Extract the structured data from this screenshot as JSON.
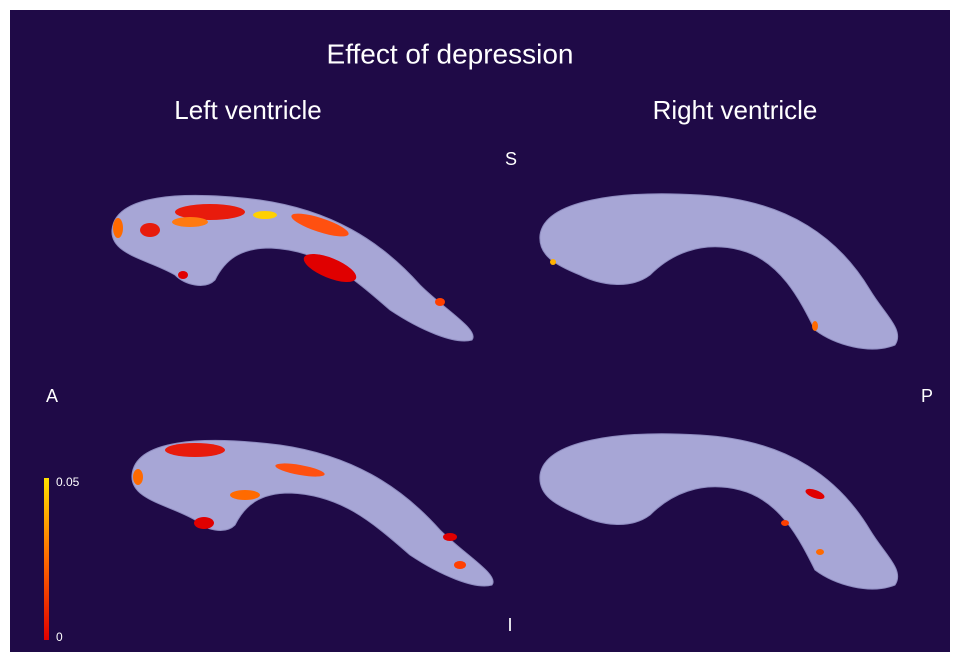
{
  "title": "Effect of depression",
  "columns": [
    "Left ventricle",
    "Right ventricle"
  ],
  "orientation": {
    "superior": "S",
    "inferior": "I",
    "anterior": "A",
    "posterior": "P"
  },
  "colorbar": {
    "min": 0,
    "max": 0.05
  }
}
